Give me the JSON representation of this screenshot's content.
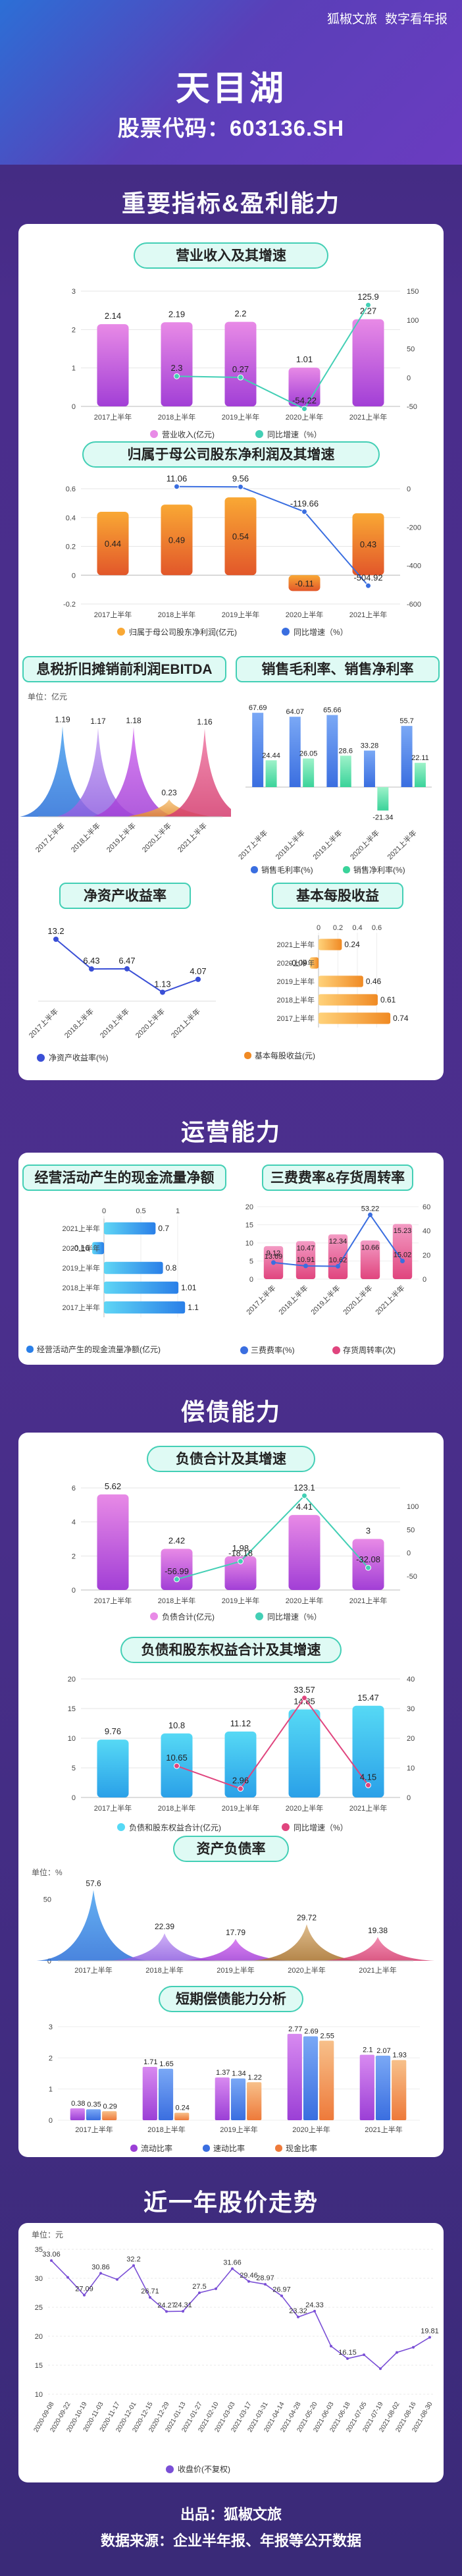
{
  "header": {
    "brand": "狐椒文旅",
    "brand_sub": "数字看年报",
    "company": "天目湖",
    "stock_label": "股票代码：",
    "stock_code": "603136.SH"
  },
  "sections": {
    "s1": "重要指标&盈利能力",
    "s2": "运营能力",
    "s3": "偿债能力",
    "s4": "近一年股价走势"
  },
  "footer": {
    "source": "出品：狐椒文旅",
    "data": "数据来源：企业半年报、年报等公开数据"
  },
  "colors": {
    "accent_teal": "#43cfb5",
    "purple": "#c14fd9",
    "orange": "#f08a24",
    "blue": "#3a7be0"
  },
  "chart_data": [
    {
      "id": "revenue",
      "type": "bar",
      "title": "营业收入及其增速",
      "categories": [
        "2017上半年",
        "2018上半年",
        "2019上半年",
        "2020上半年",
        "2021上半年"
      ],
      "series": [
        {
          "name": "营业收入(亿元)",
          "values": [
            2.14,
            2.19,
            2.2,
            1.01,
            2.27
          ]
        },
        {
          "name": "同比增速（%）",
          "values": [
            null,
            2.3,
            0.27,
            -54.22,
            125.9
          ]
        }
      ],
      "ylim_left": [
        0,
        3
      ],
      "ylim_right": [
        -50,
        150
      ],
      "yticks_left": [
        "0",
        "1",
        "2",
        "3"
      ],
      "yticks_right": [
        "-50",
        "0",
        "50",
        "100",
        "150"
      ]
    },
    {
      "id": "netprofit",
      "type": "bar",
      "title": "归属于母公司股东净利润及其增速",
      "categories": [
        "2017上半年",
        "2018上半年",
        "2019上半年",
        "2020上半年",
        "2021上半年"
      ],
      "series": [
        {
          "name": "归属于母公司股东净利润(亿元)",
          "values": [
            0.44,
            0.49,
            0.54,
            -0.11,
            0.43
          ]
        },
        {
          "name": "同比增速（%）",
          "values": [
            null,
            11.06,
            9.56,
            -119.66,
            -504.92
          ]
        }
      ],
      "ylim_left": [
        -0.2,
        0.6
      ],
      "ylim_right": [
        -600,
        0
      ],
      "yticks_left": [
        "-0.2",
        "0",
        "0.2",
        "0.4",
        "0.6"
      ],
      "yticks_right": [
        "-600",
        "-400",
        "-200",
        "0"
      ]
    },
    {
      "id": "ebitda",
      "type": "area",
      "title": "息税折旧摊销前利润EBITDA",
      "unit": "单位：亿元",
      "categories": [
        "2017上半年",
        "2018上半年",
        "2019上半年",
        "2020上半年",
        "2021上半年"
      ],
      "values": [
        1.19,
        1.17,
        1.18,
        0.23,
        1.16
      ]
    },
    {
      "id": "margin",
      "type": "bar",
      "title": "销售毛利率、销售净利率",
      "categories": [
        "2017上半年",
        "2018上半年",
        "2019上半年",
        "2020上半年",
        "2021上半年"
      ],
      "series": [
        {
          "name": "销售毛利率(%)",
          "values": [
            67.69,
            64.07,
            65.66,
            33.28,
            55.7
          ]
        },
        {
          "name": "销售净利率(%)",
          "values": [
            24.44,
            26.05,
            28.6,
            -21.34,
            22.11
          ]
        }
      ]
    },
    {
      "id": "roe",
      "type": "line",
      "title": "净资产收益率",
      "categories": [
        "2017上半年",
        "2018上半年",
        "2019上半年",
        "2020上半年",
        "2021上半年"
      ],
      "series": [
        {
          "name": "净资产收益率(%)",
          "values": [
            13.2,
            6.43,
            6.47,
            1.13,
            4.07
          ]
        }
      ]
    },
    {
      "id": "eps",
      "type": "bar",
      "title": "基本每股收益",
      "categories": [
        "2021上半年",
        "2020上半年",
        "2019上半年",
        "2018上半年",
        "2017上半年"
      ],
      "values": [
        0.24,
        -0.09,
        0.46,
        0.61,
        0.74
      ],
      "xticks": [
        "0",
        "0.2",
        "0.4",
        "0.6"
      ],
      "series_name": "基本每股收益(元)"
    },
    {
      "id": "cashflow",
      "type": "bar",
      "title": "经营活动产生的现金流量净额",
      "categories": [
        "2021上半年",
        "2020上半年",
        "2019上半年",
        "2018上半年",
        "2017上半年"
      ],
      "values": [
        0.7,
        -0.16,
        0.8,
        1.01,
        1.1
      ],
      "xticks": [
        "0",
        "0.5",
        "1"
      ],
      "series_name": "经营活动产生的现金流量净额(亿元)"
    },
    {
      "id": "turnover",
      "type": "bar",
      "title": "三费费率&存货周转率",
      "categories": [
        "2017上半年",
        "2018上半年",
        "2019上半年",
        "2020上半年",
        "2021上半年"
      ],
      "series": [
        {
          "name": "三费费率(%)",
          "values": [
            13.69,
            10.91,
            10.62,
            53.22,
            15.02
          ]
        },
        {
          "name": "存货周转率(次)",
          "values": [
            9.12,
            10.47,
            12.34,
            10.66,
            15.23
          ]
        }
      ],
      "yticks_left": [
        "0",
        "5",
        "10",
        "15",
        "20"
      ],
      "yticks_right": [
        "0",
        "20",
        "40",
        "60"
      ]
    },
    {
      "id": "liabilities",
      "type": "bar",
      "title": "负债合计及其增速",
      "categories": [
        "2017上半年",
        "2018上半年",
        "2019上半年",
        "2020上半年",
        "2021上半年"
      ],
      "series": [
        {
          "name": "负债合计(亿元)",
          "values": [
            5.62,
            2.42,
            1.98,
            4.41,
            3
          ]
        },
        {
          "name": "同比增速（%）",
          "values": [
            null,
            -56.99,
            -18.18,
            123.1,
            -32.08
          ]
        }
      ],
      "yticks_left": [
        "0",
        "2",
        "4",
        "6"
      ],
      "yticks_right": [
        "-50",
        "0",
        "50",
        "100"
      ]
    },
    {
      "id": "equity",
      "type": "bar",
      "title": "负债和股东权益合计及其增速",
      "categories": [
        "2017上半年",
        "2018上半年",
        "2019上半年",
        "2020上半年",
        "2021上半年"
      ],
      "series": [
        {
          "name": "负债和股东权益合计(亿元)",
          "values": [
            9.76,
            10.8,
            11.12,
            14.85,
            15.47
          ]
        },
        {
          "name": "同比增速（%）",
          "values": [
            null,
            10.65,
            2.96,
            33.57,
            4.15
          ]
        }
      ],
      "yticks_left": [
        "0",
        "5",
        "10",
        "15",
        "20"
      ],
      "yticks_right": [
        "0",
        "10",
        "20",
        "30",
        "40"
      ]
    },
    {
      "id": "debtratio",
      "type": "area",
      "title": "资产负债率",
      "unit": "单位：%",
      "categories": [
        "2017上半年",
        "2018上半年",
        "2019上半年",
        "2020上半年",
        "2021上半年"
      ],
      "values": [
        57.6,
        22.39,
        17.79,
        29.72,
        19.38
      ],
      "yticks": [
        "0",
        "50"
      ]
    },
    {
      "id": "solvency",
      "type": "bar",
      "title": "短期偿债能力分析",
      "categories": [
        "2017上半年",
        "2018上半年",
        "2019上半年",
        "2020上半年",
        "2021上半年"
      ],
      "series": [
        {
          "name": "流动比率",
          "values": [
            0.38,
            1.71,
            1.37,
            2.77,
            2.1
          ]
        },
        {
          "name": "速动比率",
          "values": [
            0.35,
            1.65,
            1.34,
            2.69,
            2.07
          ]
        },
        {
          "name": "现金比率",
          "values": [
            0.29,
            0.24,
            1.22,
            2.55,
            1.93
          ]
        }
      ],
      "yticks": [
        "0",
        "1",
        "2",
        "3"
      ]
    },
    {
      "id": "price",
      "type": "line",
      "title": "近一年股价走势",
      "unit": "单位：元",
      "dates": [
        "2020-09-08",
        "2020-09-22",
        "2020-10-19",
        "2020-11-03",
        "2020-11-17",
        "2020-12-01",
        "2020-12-15",
        "2020-12-29",
        "2021-01-13",
        "2021-01-27",
        "2021-02-10",
        "2021-03-03",
        "2021-03-17",
        "2021-03-31",
        "2021-04-14",
        "2021-04-28",
        "2021-05-20",
        "2021-06-03",
        "2021-06-18",
        "2021-07-05",
        "2021-07-19",
        "2021-08-02",
        "2021-08-16",
        "2021-08-30"
      ],
      "values": [
        33.06,
        30.16,
        27.09,
        30.86,
        29.8,
        32.2,
        26.71,
        24.27,
        24.31,
        27.5,
        28.2,
        31.66,
        29.46,
        28.97,
        26.97,
        23.32,
        24.33,
        18.3,
        16.15,
        16.8,
        14.4,
        17.2,
        18.1,
        19.81
      ],
      "labels": [
        {
          "i": 0,
          "t": "33.06"
        },
        {
          "i": 2,
          "t": "27.09"
        },
        {
          "i": 3,
          "t": "30.86"
        },
        {
          "i": 5,
          "t": "32.2"
        },
        {
          "i": 6,
          "t": "26.71"
        },
        {
          "i": 7,
          "t": "24.27"
        },
        {
          "i": 8,
          "t": "24.31"
        },
        {
          "i": 9,
          "t": "27.5"
        },
        {
          "i": 11,
          "t": "31.66"
        },
        {
          "i": 12,
          "t": "29.46"
        },
        {
          "i": 13,
          "t": "28.97"
        },
        {
          "i": 14,
          "t": "26.97"
        },
        {
          "i": 15,
          "t": "23.32"
        },
        {
          "i": 16,
          "t": "24.33"
        },
        {
          "i": 18,
          "t": "16.15"
        },
        {
          "i": 23,
          "t": "19.81"
        }
      ],
      "yticks": [
        "10",
        "15",
        "20",
        "25",
        "30",
        "35"
      ],
      "series_name": "收盘价(不复权)"
    }
  ]
}
